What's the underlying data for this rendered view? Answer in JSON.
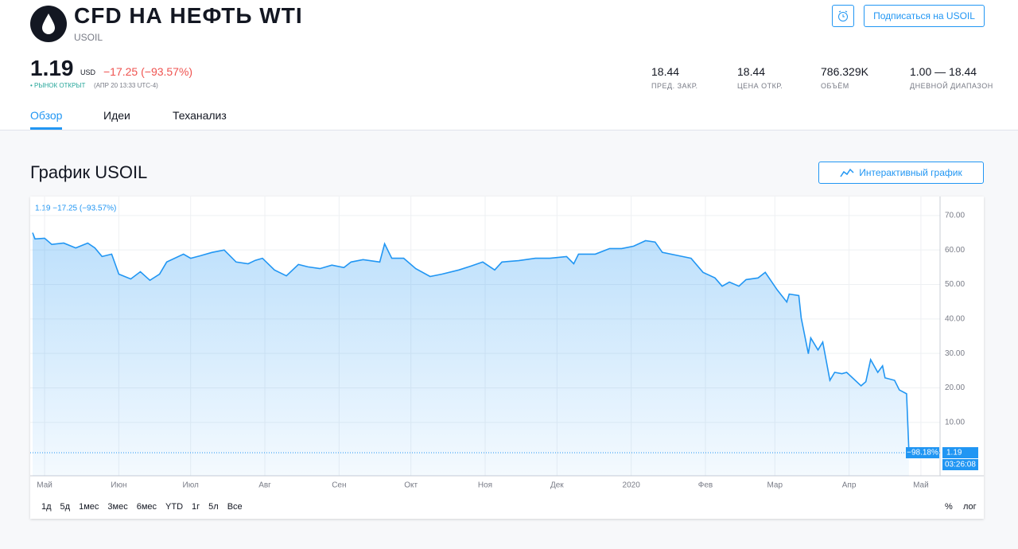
{
  "header": {
    "title": "CFD НА НЕФТЬ WTI",
    "symbol": "USOIL",
    "subscribe": "Подписаться на USOIL"
  },
  "quote": {
    "price": "1.19",
    "currency": "USD",
    "change": "−17.25 (−93.57%)",
    "status": "• РЫНОК ОТКРЫТ",
    "time": "(АПР 20 13:33 UTC-4)"
  },
  "stats": [
    {
      "value": "18.44",
      "label": "ПРЕД. ЗАКР."
    },
    {
      "value": "18.44",
      "label": "ЦЕНА ОТКР."
    },
    {
      "value": "786.329K",
      "label": "ОБЪЁМ"
    },
    {
      "value": "1.00 — 18.44",
      "label": "ДНЕВНОЙ ДИАПАЗОН"
    }
  ],
  "tabs": [
    "Обзор",
    "Идеи",
    "Теханализ"
  ],
  "section_title": "График USOIL",
  "interactive_button": "Интерактивный график",
  "chart_data": {
    "type": "line",
    "legend_text": "1.19 −17.25 (−93.57%)",
    "color": "#2196f3",
    "grid": true,
    "log": false,
    "x": [
      -5,
      -4,
      0,
      3,
      8,
      13,
      18,
      21,
      24,
      28,
      31,
      36,
      40,
      44,
      48,
      51,
      58,
      61,
      65,
      70,
      75,
      80,
      85,
      88,
      91,
      96,
      101,
      106,
      110,
      115,
      120,
      125,
      128,
      133,
      140,
      142,
      145,
      150,
      155,
      161,
      166,
      173,
      178,
      183,
      188,
      191,
      198,
      205,
      211,
      218,
      221,
      223,
      230,
      236,
      241,
      246,
      251,
      255,
      258,
      265,
      270,
      275,
      280,
      283,
      286,
      290,
      293,
      298,
      301,
      306,
      310,
      311,
      315,
      316,
      319,
      320,
      323,
      325,
      328,
      330,
      333,
      335,
      341,
      343,
      345,
      348,
      350,
      351,
      355,
      357,
      360,
      361
    ],
    "values": [
      65.0,
      63.2,
      63.4,
      61.6,
      62.0,
      60.6,
      62.0,
      60.6,
      58.1,
      58.8,
      53.0,
      51.6,
      53.7,
      51.2,
      53.0,
      56.5,
      58.8,
      57.6,
      58.3,
      59.3,
      60.0,
      56.5,
      56.0,
      57.0,
      57.6,
      54.2,
      52.5,
      55.8,
      55.1,
      54.6,
      55.6,
      54.9,
      56.5,
      57.2,
      56.5,
      61.8,
      57.6,
      57.6,
      54.6,
      52.3,
      53.0,
      54.2,
      55.3,
      56.5,
      54.2,
      56.5,
      56.9,
      57.6,
      57.6,
      58.1,
      56.0,
      58.8,
      58.8,
      60.4,
      60.4,
      61.1,
      62.7,
      62.3,
      59.3,
      58.3,
      57.6,
      53.5,
      51.9,
      49.5,
      50.7,
      49.5,
      51.4,
      51.9,
      53.5,
      48.4,
      44.9,
      47.2,
      46.8,
      40.3,
      29.9,
      34.5,
      31.0,
      33.3,
      22.2,
      24.5,
      24.1,
      24.5,
      20.6,
      21.8,
      28.2,
      24.5,
      26.4,
      22.9,
      22.2,
      19.4,
      18.3,
      1.19
    ],
    "xlim": [
      -6,
      374
    ],
    "xticks": [
      {
        "value": 0,
        "label": "Май"
      },
      {
        "value": 31,
        "label": "Июн"
      },
      {
        "value": 61,
        "label": "Июл"
      },
      {
        "value": 92,
        "label": "Авг"
      },
      {
        "value": 123,
        "label": "Сен"
      },
      {
        "value": 153,
        "label": "Окт"
      },
      {
        "value": 184,
        "label": "Ноя"
      },
      {
        "value": 214,
        "label": "Дек"
      },
      {
        "value": 245,
        "label": "2020"
      },
      {
        "value": 276,
        "label": "Фев"
      },
      {
        "value": 305,
        "label": "Мар"
      },
      {
        "value": 336,
        "label": "Апр"
      },
      {
        "value": 366,
        "label": "Май"
      }
    ],
    "ylim": [
      -5.5,
      75.5
    ],
    "yticks": [
      {
        "value": 10,
        "label": "10.00"
      },
      {
        "value": 20,
        "label": "20.00"
      },
      {
        "value": 30,
        "label": "30.00"
      },
      {
        "value": 40,
        "label": "40.00"
      },
      {
        "value": 50,
        "label": "50.00"
      },
      {
        "value": 60,
        "label": "60.00"
      },
      {
        "value": 70,
        "label": "70.00"
      }
    ],
    "annotations": {
      "change_pct": "−98.18%",
      "countdown": "03:26:08"
    },
    "ranges": [
      "1д",
      "5д",
      "1мес",
      "3мес",
      "6мес",
      "YTD",
      "1г",
      "5л",
      "Все"
    ],
    "scale_options": [
      "%",
      "лог"
    ]
  }
}
